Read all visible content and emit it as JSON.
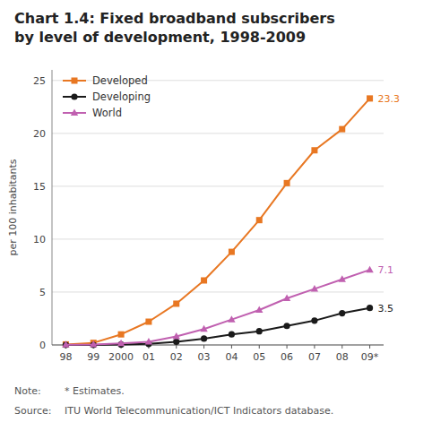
{
  "chart_data": {
    "type": "line",
    "title": "Chart 1.4: Fixed broadband subscribers",
    "subtitle": "by level of development, 1998-2009",
    "y_label": "per 100 inhabitants",
    "categories": [
      "98",
      "99",
      "2000",
      "01",
      "02",
      "03",
      "04",
      "05",
      "06",
      "07",
      "08",
      "09*"
    ],
    "series": [
      {
        "name": "Developed",
        "color": "#E87722",
        "marker": "square",
        "values": [
          0.05,
          0.2,
          1.0,
          2.2,
          3.9,
          6.1,
          8.8,
          11.8,
          15.3,
          18.4,
          20.4,
          23.3
        ]
      },
      {
        "name": "Developing",
        "color": "#1A1A1A",
        "marker": "circle",
        "values": [
          0.0,
          0.0,
          0.05,
          0.1,
          0.3,
          0.6,
          1.0,
          1.3,
          1.8,
          2.3,
          3.0,
          3.5
        ]
      },
      {
        "name": "World",
        "color": "#C060B0",
        "marker": "triangle",
        "values": [
          0.02,
          0.05,
          0.15,
          0.3,
          0.8,
          1.5,
          2.4,
          3.3,
          4.4,
          5.3,
          6.2,
          7.1
        ]
      }
    ],
    "ylim": [
      0,
      26
    ],
    "yticks": [
      0,
      5,
      10,
      15,
      20,
      25
    ],
    "grid": true,
    "legend": "upper left",
    "annotations": [
      {
        "text": "23.3",
        "series": "Developed",
        "x": "09*",
        "y": 23.3
      },
      {
        "text": "7.1",
        "series": "World",
        "x": "09*",
        "y": 7.1
      },
      {
        "text": "3.5",
        "series": "Developing",
        "x": "09*",
        "y": 3.5
      }
    ],
    "notes": [
      {
        "label": "Note:",
        "text": "* Estimates."
      },
      {
        "label": "Source:",
        "text": "ITU World Telecommunication/ICT Indicators database."
      }
    ]
  }
}
